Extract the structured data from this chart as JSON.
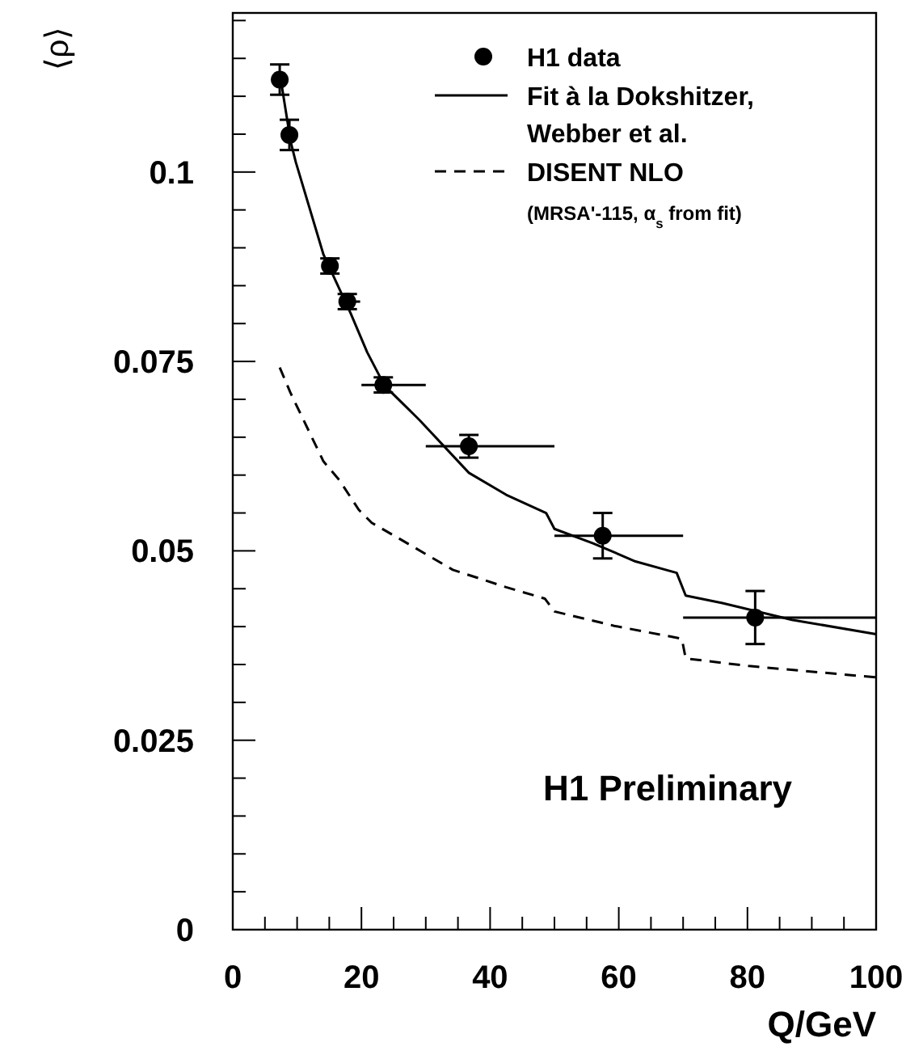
{
  "chart_data": {
    "type": "scatter",
    "xlabel": "Q/GeV",
    "ylabel": "⟨ρ⟩",
    "xlim": [
      0,
      100
    ],
    "ylim": [
      0,
      0.121
    ],
    "xticks": [
      0,
      {
        "value": 5,
        "label": null
      },
      {
        "value": 10,
        "label": null
      },
      {
        "value": 15,
        "label": null
      },
      20,
      {
        "value": 25,
        "label": null
      },
      {
        "value": 30,
        "label": null
      },
      {
        "value": 35,
        "label": null
      },
      40,
      {
        "value": 45,
        "label": null
      },
      {
        "value": 50,
        "label": null
      },
      {
        "value": 55,
        "label": null
      },
      60,
      {
        "value": 65,
        "label": null
      },
      {
        "value": 70,
        "label": null
      },
      {
        "value": 75,
        "label": null
      },
      80,
      {
        "value": 85,
        "label": null
      },
      {
        "value": 90,
        "label": null
      },
      {
        "value": 95,
        "label": null
      },
      100
    ],
    "yticks": [
      0,
      {
        "value": 0.005,
        "label": null
      },
      {
        "value": 0.01,
        "label": null
      },
      {
        "value": 0.015,
        "label": null
      },
      {
        "value": 0.02,
        "label": null
      },
      0.025,
      {
        "value": 0.03,
        "label": null
      },
      {
        "value": 0.035,
        "label": null
      },
      {
        "value": 0.04,
        "label": null
      },
      {
        "value": 0.045,
        "label": null
      },
      0.05,
      {
        "value": 0.055,
        "label": null
      },
      {
        "value": 0.06,
        "label": null
      },
      {
        "value": 0.065,
        "label": null
      },
      {
        "value": 0.07,
        "label": null
      },
      0.075,
      {
        "value": 0.08,
        "label": null
      },
      {
        "value": 0.085,
        "label": null
      },
      {
        "value": 0.09,
        "label": null
      },
      {
        "value": 0.095,
        "label": null
      },
      0.1,
      {
        "value": 0.105,
        "label": null
      },
      {
        "value": 0.11,
        "label": null
      },
      {
        "value": 0.115,
        "label": null
      },
      {
        "value": 0.12,
        "label": null
      }
    ],
    "grid": false,
    "legend": "top right",
    "series": [
      {
        "name": "H1 data",
        "marker": "circle",
        "color": "#000000",
        "x": [
          7.3,
          8.8,
          15.1,
          17.8,
          23.4,
          36.7,
          57.5,
          81.2
        ],
        "values": [
          0.1122,
          0.1049,
          0.0876,
          0.0829,
          0.0719,
          0.0638,
          0.052,
          0.0412
        ],
        "errors": [
          0.002,
          0.002,
          0.001,
          0.001,
          0.001,
          0.0015,
          0.003,
          0.0035
        ],
        "xerrors": [
          null,
          null,
          null,
          [
            16.6,
            19.8
          ],
          [
            20,
            30
          ],
          [
            30,
            50
          ],
          [
            50,
            70
          ],
          [
            70,
            100
          ]
        ]
      },
      {
        "name": "Fit à la Dokshitzer, Webber et al.",
        "type": "line",
        "marker": "none",
        "color": "#000000",
        "line_style": "solid",
        "x": [
          7.5,
          9,
          9.8,
          14.1,
          18.3,
          20.9,
          23.6,
          29.1,
          36.7,
          42.5,
          48.7,
          50,
          56,
          62.6,
          69,
          70.4,
          76.1,
          86.9,
          100
        ],
        "values": [
          0.112,
          0.104,
          0.1013,
          0.0891,
          0.0814,
          0.0762,
          0.0718,
          0.0672,
          0.0603,
          0.0574,
          0.055,
          0.0529,
          0.051,
          0.0486,
          0.0471,
          0.0441,
          0.0431,
          0.0409,
          0.039
        ]
      },
      {
        "name": "DISENT NLO",
        "type": "line",
        "marker": "none",
        "color": "#000000",
        "line_style": "dashed",
        "x": [
          7.3,
          9,
          14.1,
          16.6,
          19.6,
          21.6,
          25.9,
          34.2,
          42.5,
          48.5,
          50,
          59.3,
          69.8,
          70.4,
          80.2,
          100
        ],
        "values": [
          0.0742,
          0.0708,
          0.0618,
          0.0593,
          0.0554,
          0.0537,
          0.0516,
          0.0475,
          0.0452,
          0.0437,
          0.042,
          0.0401,
          0.0384,
          0.0358,
          0.0348,
          0.0333
        ]
      }
    ],
    "annotations": [
      "(MRSA'-115, α$_{s}$ from fit)",
      "H1 Preliminary"
    ]
  }
}
